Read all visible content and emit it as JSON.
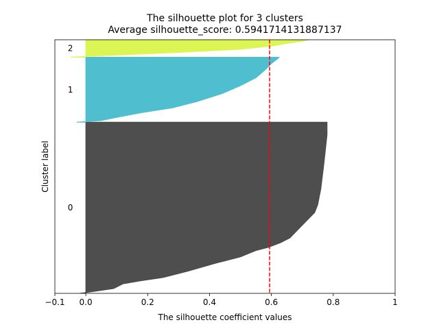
{
  "chart_data": {
    "type": "silhouette",
    "title": "The silhouette plot for 3 clusters",
    "subtitle": "Average silhouette_score: 0.5941714131887137",
    "xlabel": "The silhouette coefficient values",
    "ylabel": "Cluster label",
    "xlim": [
      -0.1,
      1.0
    ],
    "ylim": [
      0,
      160
    ],
    "xticks": [
      -0.1,
      0.0,
      0.2,
      0.4,
      0.6,
      0.8,
      1.0
    ],
    "xtick_labels": [
      "−0.1",
      "0.0",
      "0.2",
      "0.4",
      "0.6",
      "0.8",
      "1"
    ],
    "average_silhouette": 0.5941714131887137,
    "clusters": [
      {
        "label": "0",
        "color": "#4a4a4a",
        "y_start": 0,
        "y_end": 108,
        "profile": [
          [
            0,
            -0.02
          ],
          [
            1,
            0.02
          ],
          [
            3,
            0.09
          ],
          [
            6,
            0.12
          ],
          [
            8,
            0.18
          ],
          [
            10,
            0.25
          ],
          [
            14,
            0.33
          ],
          [
            19,
            0.42
          ],
          [
            23,
            0.5
          ],
          [
            27,
            0.55
          ],
          [
            29,
            0.59
          ],
          [
            32,
            0.63
          ],
          [
            35,
            0.66
          ],
          [
            39,
            0.68
          ],
          [
            43,
            0.7
          ],
          [
            47,
            0.72
          ],
          [
            51,
            0.74
          ],
          [
            56,
            0.75
          ],
          [
            66,
            0.76
          ],
          [
            82,
            0.77
          ],
          [
            100,
            0.78
          ],
          [
            108,
            0.78
          ]
        ]
      },
      {
        "label": "1",
        "color": "#4bbecf",
        "y_start": 108,
        "y_end": 149,
        "profile": [
          [
            0,
            -0.03
          ],
          [
            1,
            0.05
          ],
          [
            3,
            0.1
          ],
          [
            6,
            0.18
          ],
          [
            9,
            0.28
          ],
          [
            13,
            0.36
          ],
          [
            18,
            0.44
          ],
          [
            23,
            0.5
          ],
          [
            28,
            0.55
          ],
          [
            33,
            0.58
          ],
          [
            37,
            0.6
          ],
          [
            40,
            0.62
          ],
          [
            41,
            0.625
          ]
        ]
      },
      {
        "label": "2",
        "color": "#dbf552",
        "y_start": 149,
        "y_end": 160,
        "profile": [
          [
            0,
            -0.05
          ],
          [
            1,
            0.06
          ],
          [
            3,
            0.3
          ],
          [
            5,
            0.5
          ],
          [
            7,
            0.6
          ],
          [
            9,
            0.66
          ],
          [
            10,
            0.7
          ],
          [
            11,
            0.72
          ]
        ]
      }
    ]
  }
}
